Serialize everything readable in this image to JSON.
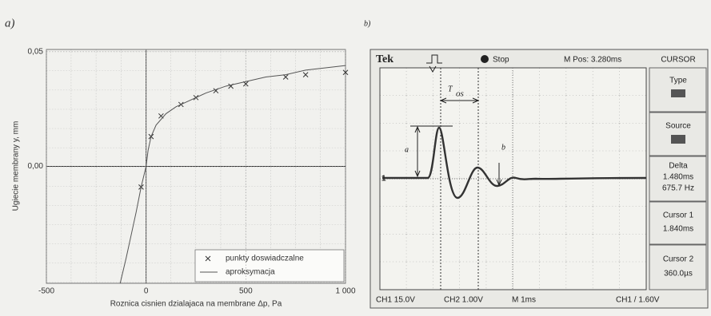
{
  "chart_data": {
    "type": "scatter-line",
    "label": "a)",
    "x_label": "Roznica cisnien dzialajaca na membrane Δp, Pa",
    "y_label": "Ugiecie membrany y, mm",
    "xlim": [
      -500,
      1000
    ],
    "xticks": [
      -500,
      0,
      500,
      {
        "value": 1000,
        "label": "1 000"
      }
    ],
    "ylim": [
      -0.051,
      0.051
    ],
    "yticks": [
      {
        "value": 0.05,
        "label": "0,05"
      },
      {
        "value": 0,
        "label": "0,00"
      }
    ],
    "grid": true,
    "legend": "lower right",
    "series": [
      {
        "name": "punkty doswiadczalne",
        "type": "scatter",
        "color": "#333333",
        "x": [
          -25,
          25,
          75,
          175,
          250,
          350,
          425,
          500,
          700,
          800,
          1000
        ],
        "values": [
          -0.009,
          0.013,
          0.022,
          0.027,
          0.03,
          0.033,
          0.035,
          0.036,
          0.039,
          0.04,
          0.041
        ]
      },
      {
        "name": "aproksymacja",
        "type": "line",
        "color": "#555555",
        "x": [
          -130,
          -100,
          -75,
          -50,
          -25,
          0,
          10,
          25,
          50,
          100,
          150,
          200,
          300,
          400,
          500,
          600,
          700,
          800,
          900,
          1000
        ],
        "values": [
          -0.051,
          -0.04,
          -0.03,
          -0.02,
          -0.009,
          0,
          0.007,
          0.013,
          0.018,
          0.023,
          0.026,
          0.028,
          0.032,
          0.035,
          0.037,
          0.039,
          0.04,
          0.042,
          0.043,
          0.044
        ]
      }
    ]
  },
  "scope": {
    "label": "b)",
    "brand": "Tek",
    "state": "Stop",
    "m_pos": "M Pos: 3.280ms",
    "menu": "CURSOR",
    "type_label": "Type",
    "source_label": "Source",
    "delta_label": "Delta",
    "delta_time": "1.480ms",
    "delta_freq": "675.7 Hz",
    "cursor1_label": "Cursor 1",
    "cursor1_value": "1.840ms",
    "cursor2_label": "Cursor 2",
    "cursor2_value": "360.0µs",
    "ch1": "CH1 15.0V",
    "ch2": "CH2 1.00V",
    "timebase": "M 1ms",
    "trigger": "CH1 / 1.60V",
    "marker_t": "T",
    "marker_t_sub": "os",
    "marker_a": "a",
    "marker_b": "b",
    "marker_level": "1"
  }
}
